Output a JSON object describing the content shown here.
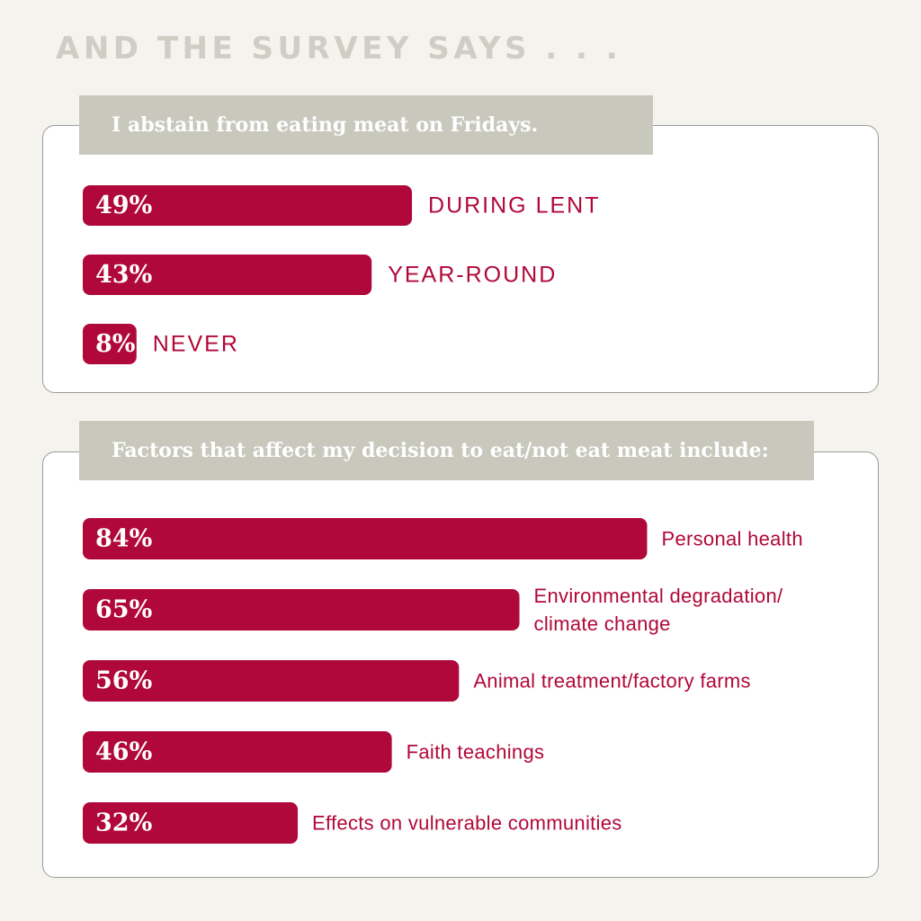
{
  "headline": "AND THE SURVEY SAYS . . .",
  "colors": {
    "bar": "#b0083a",
    "tab": "#c9c8bd",
    "background": "#f4f3ed"
  },
  "chart_data": [
    {
      "type": "bar",
      "orientation": "horizontal",
      "title": "I abstain from eating meat on Fridays.",
      "unit": "%",
      "categories": [
        [
          "DURING LENT"
        ],
        [
          "YEAR-ROUND"
        ],
        [
          "NEVER"
        ]
      ],
      "values": [
        49,
        43,
        8
      ],
      "value_labels": [
        "49%",
        "43%",
        "8%"
      ]
    },
    {
      "type": "bar",
      "orientation": "horizontal",
      "title": "Factors that affect my decision to eat/not eat meat include:",
      "unit": "%",
      "categories": [
        [
          "Personal health"
        ],
        [
          "Environmental degradation/",
          "climate change"
        ],
        [
          "Animal treatment/factory farms"
        ],
        [
          "Faith teachings"
        ],
        [
          "Effects on vulnerable communities"
        ]
      ],
      "values": [
        84,
        65,
        56,
        46,
        32
      ],
      "value_labels": [
        "84%",
        "65%",
        "56%",
        "46%",
        "32%"
      ]
    }
  ]
}
